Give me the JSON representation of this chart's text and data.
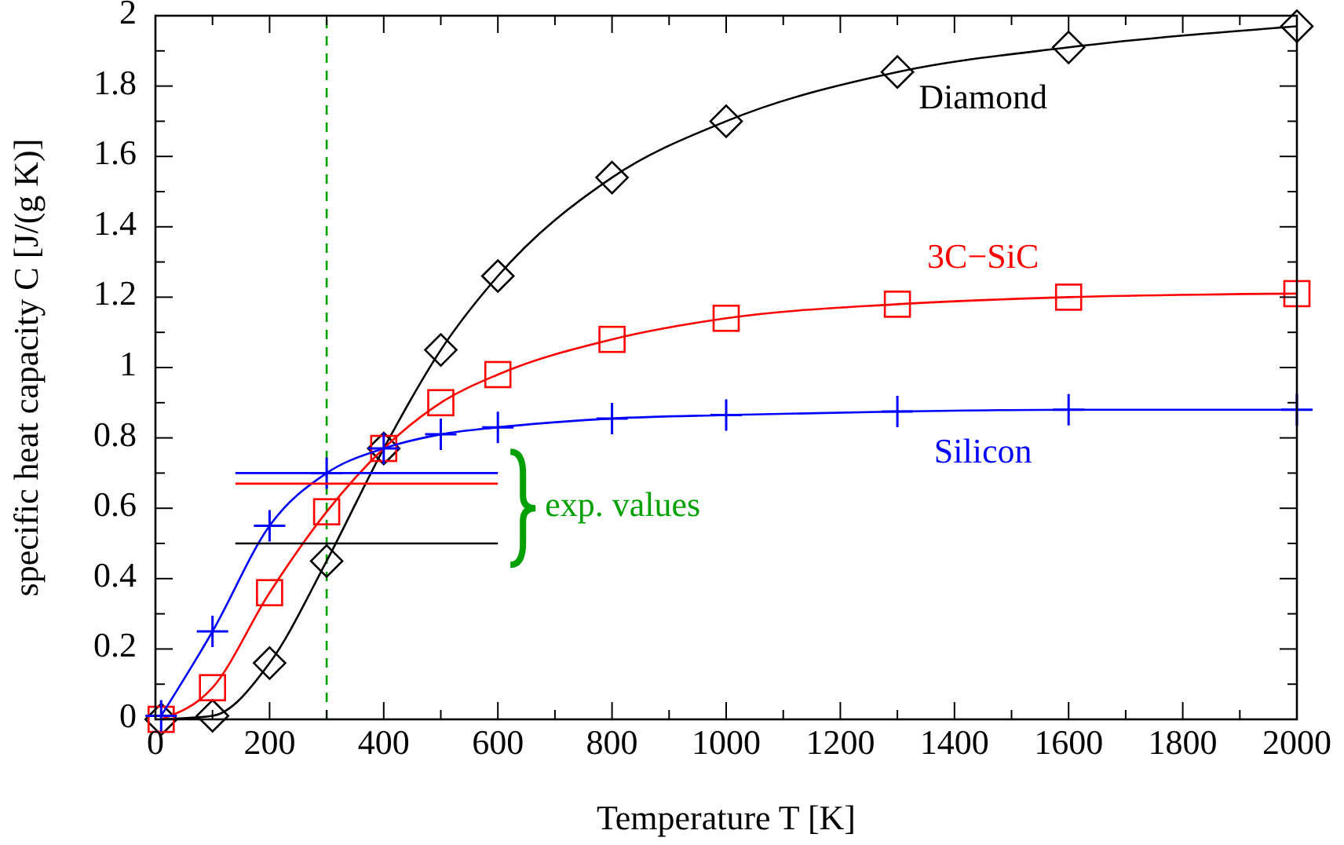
{
  "chart_data": {
    "type": "line",
    "xlabel": "Temperature T [K]",
    "ylabel": "specific heat capacity C [J/(g K)]",
    "xlim": [
      0,
      2000
    ],
    "ylim": [
      0,
      2
    ],
    "xticks": [
      0,
      {
        "value": 100,
        "label": null
      },
      200,
      {
        "value": 300,
        "label": null
      },
      400,
      {
        "value": 500,
        "label": null
      },
      600,
      {
        "value": 700,
        "label": null
      },
      800,
      {
        "value": 900,
        "label": null
      },
      1000,
      {
        "value": 1100,
        "label": null
      },
      1200,
      {
        "value": 1300,
        "label": null
      },
      1400,
      {
        "value": 1500,
        "label": null
      },
      1600,
      {
        "value": 1700,
        "label": null
      },
      1800,
      {
        "value": 1900,
        "label": null
      },
      2000
    ],
    "yticks": [
      0,
      {
        "value": 0.1,
        "label": null
      },
      0.2,
      {
        "value": 0.3,
        "label": null
      },
      0.4,
      {
        "value": 0.5,
        "label": null
      },
      0.6,
      {
        "value": 0.7,
        "label": null
      },
      0.8,
      {
        "value": 0.9,
        "label": null
      },
      1,
      {
        "value": 1.1,
        "label": null
      },
      1.2,
      {
        "value": 1.3,
        "label": null
      },
      1.4,
      {
        "value": 1.5,
        "label": null
      },
      1.6,
      {
        "value": 1.7,
        "label": null
      },
      1.8,
      {
        "value": 1.9,
        "label": null
      },
      2
    ],
    "grid": false,
    "series": [
      {
        "name": "Diamond",
        "color": "#000000",
        "marker": "diamond",
        "x": [
          10,
          100,
          200,
          300,
          400,
          500,
          600,
          800,
          1000,
          1300,
          1600,
          2000
        ],
        "values": [
          0,
          0.01,
          0.16,
          0.45,
          0.77,
          1.05,
          1.26,
          1.54,
          1.7,
          1.84,
          1.91,
          1.97
        ]
      },
      {
        "name": "3C−SiC",
        "color": "#ff0000",
        "marker": "square",
        "x": [
          10,
          100,
          200,
          300,
          400,
          500,
          600,
          800,
          1000,
          1300,
          1600,
          2000
        ],
        "values": [
          0,
          0.09,
          0.36,
          0.59,
          0.77,
          0.9,
          0.98,
          1.08,
          1.14,
          1.18,
          1.2,
          1.21
        ]
      },
      {
        "name": "Silicon",
        "color": "#0000ff",
        "marker": "cross",
        "x": [
          10,
          100,
          200,
          300,
          400,
          500,
          600,
          800,
          1000,
          1300,
          1600,
          2000
        ],
        "values": [
          0.01,
          0.25,
          0.55,
          0.7,
          0.77,
          0.81,
          0.83,
          0.855,
          0.865,
          0.875,
          0.88,
          0.88
        ]
      },
      {
        "type": "line",
        "color": "#0000ff",
        "marker": "none",
        "x": [
          140,
          600
        ],
        "values": [
          0.7,
          0.7
        ]
      },
      {
        "type": "line",
        "color": "#ff0000",
        "marker": "none",
        "x": [
          140,
          600
        ],
        "values": [
          0.67,
          0.67
        ]
      },
      {
        "type": "line",
        "color": "#000000",
        "marker": "none",
        "x": [
          140,
          600
        ],
        "values": [
          0.5,
          0.5
        ]
      }
    ],
    "ref_lines": [
      {
        "axis": "x",
        "value": 300,
        "color": "#00a000",
        "line_style": "dashed"
      }
    ],
    "annotations": [
      "exp. values"
    ]
  }
}
